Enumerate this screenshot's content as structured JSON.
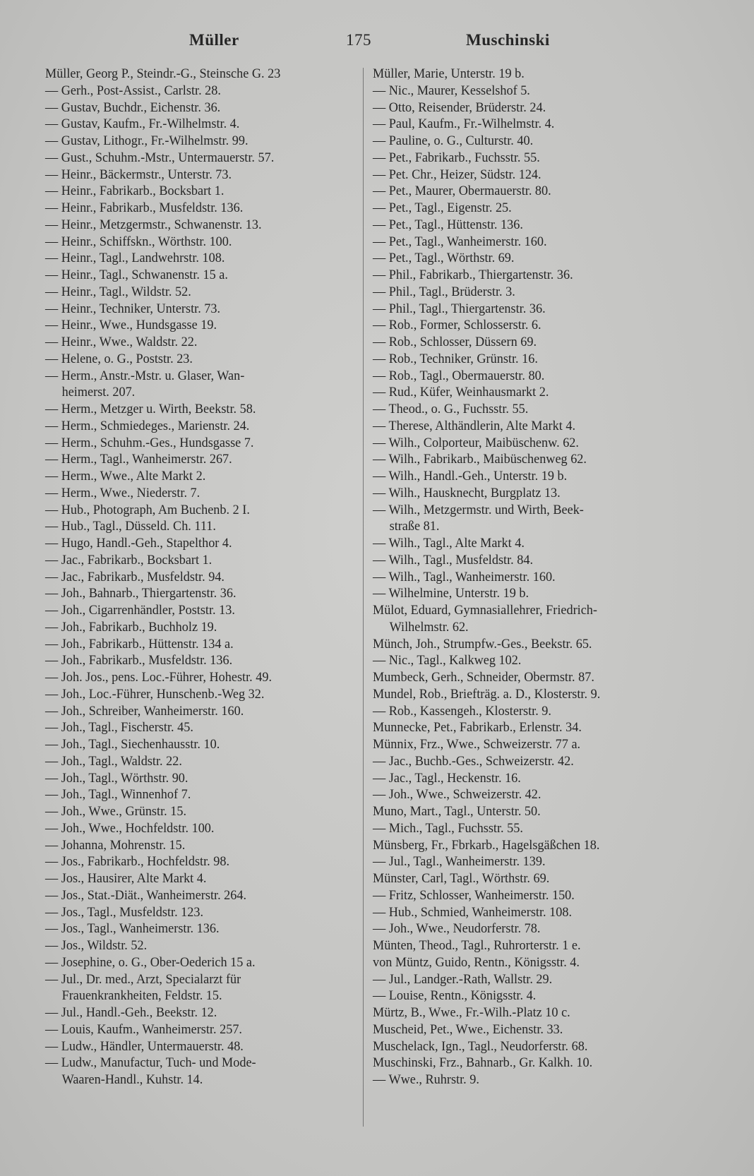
{
  "header": {
    "left_word": "Müller",
    "page_number": "175",
    "right_word": "Muschinski"
  },
  "left_column": [
    "Müller, Georg P., Steindr.-G., Steinsche G. 23",
    "— Gerh., Post-Assist., Carlstr. 28.",
    "— Gustav, Buchdr., Eichenstr. 36.",
    "— Gustav, Kaufm., Fr.-Wilhelmstr. 4.",
    "— Gustav, Lithogr., Fr.-Wilhelmstr. 99.",
    "— Gust., Schuhm.-Mstr., Untermauerstr. 57.",
    "— Heinr., Bäckermstr., Unterstr. 73.",
    "— Heinr., Fabrikarb., Bocksbart 1.",
    "— Heinr., Fabrikarb., Musfeldstr. 136.",
    "— Heinr., Metzgermstr., Schwanenstr. 13.",
    "— Heinr., Schiffskn., Wörthstr. 100.",
    "— Heinr., Tagl., Landwehrstr. 108.",
    "— Heinr., Tagl., Schwanenstr. 15 a.",
    "— Heinr., Tagl., Wildstr. 52.",
    "— Heinr., Techniker, Unterstr. 73.",
    "— Heinr., Wwe., Hundsgasse 19.",
    "— Heinr., Wwe., Waldstr. 22.",
    "— Helene, o. G., Poststr. 23.",
    "— Herm., Anstr.-Mstr. u. Glaser, Wan-",
    "heimerst. 207.",
    "— Herm., Metzger u. Wirth, Beekstr. 58.",
    "— Herm., Schmiedeges., Marienstr. 24.",
    "— Herm., Schuhm.-Ges., Hundsgasse 7.",
    "— Herm., Tagl., Wanheimerstr. 267.",
    "— Herm., Wwe., Alte Markt 2.",
    "— Herm., Wwe., Niederstr. 7.",
    "— Hub., Photograph, Am Buchenb. 2 I.",
    "— Hub., Tagl., Düsseld. Ch. 111.",
    "— Hugo, Handl.-Geh., Stapelthor 4.",
    "— Jac., Fabrikarb., Bocksbart 1.",
    "— Jac., Fabrikarb., Musfeldstr. 94.",
    "— Joh., Bahnarb., Thiergartenstr. 36.",
    "— Joh., Cigarrenhändler, Poststr. 13.",
    "— Joh., Fabrikarb., Buchholz 19.",
    "— Joh., Fabrikarb., Hüttenstr. 134 a.",
    "— Joh., Fabrikarb., Musfeldstr. 136.",
    "— Joh. Jos., pens. Loc.-Führer, Hohestr. 49.",
    "— Joh., Loc.-Führer, Hunschenb.-Weg 32.",
    "— Joh., Schreiber, Wanheimerstr. 160.",
    "— Joh., Tagl., Fischerstr. 45.",
    "— Joh., Tagl., Siechenhausstr. 10.",
    "— Joh., Tagl., Waldstr. 22.",
    "— Joh., Tagl., Wörthstr. 90.",
    "— Joh., Tagl., Winnenhof 7.",
    "— Joh., Wwe., Grünstr. 15.",
    "— Joh., Wwe., Hochfeldstr. 100.",
    "— Johanna, Mohrenstr. 15.",
    "— Jos., Fabrikarb., Hochfeldstr. 98.",
    "— Jos., Hausirer, Alte Markt 4.",
    "— Jos., Stat.-Diät., Wanheimerstr. 264.",
    "— Jos., Tagl., Musfeldstr. 123.",
    "— Jos., Tagl., Wanheimerstr. 136.",
    "— Jos., Wildstr. 52.",
    "— Josephine, o. G., Ober-Oederich 15 a.",
    "— Jul., Dr. med., Arzt, Specialarzt für",
    "Frauenkrankheiten, Feldstr. 15.",
    "— Jul., Handl.-Geh., Beekstr. 12.",
    "— Louis, Kaufm., Wanheimerstr. 257.",
    "— Ludw., Händler, Untermauerstr. 48.",
    "— Ludw., Manufactur, Tuch- und Mode-",
    "Waaren-Handl., Kuhstr. 14."
  ],
  "right_column": [
    "Müller, Marie, Unterstr. 19 b.",
    "— Nic., Maurer, Kesselshof 5.",
    "— Otto, Reisender, Brüderstr. 24.",
    "— Paul, Kaufm., Fr.-Wilhelmstr. 4.",
    "— Pauline, o. G., Culturstr. 40.",
    "— Pet., Fabrikarb., Fuchsstr. 55.",
    "— Pet. Chr., Heizer, Südstr. 124.",
    "— Pet., Maurer, Obermauerstr. 80.",
    "— Pet., Tagl., Eigenstr. 25.",
    "— Pet., Tagl., Hüttenstr. 136.",
    "— Pet., Tagl., Wanheimerstr. 160.",
    "— Pet., Tagl., Wörthstr. 69.",
    "— Phil., Fabrikarb., Thiergartenstr. 36.",
    "— Phil., Tagl., Brüderstr. 3.",
    "— Phil., Tagl., Thiergartenstr. 36.",
    "— Rob., Former, Schlosserstr. 6.",
    "— Rob., Schlosser, Düssern 69.",
    "— Rob., Techniker, Grünstr. 16.",
    "— Rob., Tagl., Obermauerstr. 80.",
    "— Rud., Küfer, Weinhausmarkt 2.",
    "— Theod., o. G., Fuchsstr. 55.",
    "— Therese, Althändlerin, Alte Markt 4.",
    "— Wilh., Colporteur, Maibüschenw. 62.",
    "— Wilh., Fabrikarb., Maibüschenweg 62.",
    "— Wilh., Handl.-Geh., Unterstr. 19 b.",
    "— Wilh., Hausknecht, Burgplatz 13.",
    "— Wilh., Metzgermstr. und Wirth, Beek-",
    "straße 81.",
    "— Wilh., Tagl., Alte Markt 4.",
    "— Wilh., Tagl., Musfeldstr. 84.",
    "— Wilh., Tagl., Wanheimerstr. 160.",
    "— Wilhelmine, Unterstr. 19 b.",
    "Mülot, Eduard, Gymnasiallehrer, Friedrich-",
    "Wilhelmstr. 62.",
    "Münch, Joh., Strumpfw.-Ges., Beekstr. 65.",
    "— Nic., Tagl., Kalkweg 102.",
    "Mumbeck, Gerh., Schneider, Obermstr. 87.",
    "Mundel, Rob., Briefträg. a. D., Klosterstr. 9.",
    "— Rob., Kassengeh., Klosterstr. 9.",
    "Munnecke, Pet., Fabrikarb., Erlenstr. 34.",
    "Münnix, Frz., Wwe., Schweizerstr. 77 a.",
    "— Jac., Buchb.-Ges., Schweizerstr. 42.",
    "— Jac., Tagl., Heckenstr. 16.",
    "— Joh., Wwe., Schweizerstr. 42.",
    "Muno, Mart., Tagl., Unterstr. 50.",
    "— Mich., Tagl., Fuchsstr. 55.",
    "Münsberg, Fr., Fbrkarb., Hagelsgäßchen 18.",
    "— Jul., Tagl., Wanheimerstr. 139.",
    "Münster, Carl, Tagl., Wörthstr. 69.",
    "— Fritz, Schlosser, Wanheimerstr. 150.",
    "— Hub., Schmied, Wanheimerstr. 108.",
    "— Joh., Wwe., Neudorferstr. 78.",
    "Münten, Theod., Tagl., Ruhrorterstr. 1 e.",
    "von Müntz, Guido, Rentn., Königsstr. 4.",
    "— Jul., Landger.-Rath, Wallstr. 29.",
    "— Louise, Rentn., Königsstr. 4.",
    "Mürtz, B., Wwe., Fr.-Wilh.-Platz 10 c.",
    "Muscheid, Pet., Wwe., Eichenstr. 33.",
    "Muschelack, Ign., Tagl., Neudorferstr. 68.",
    "Muschinski, Frz., Bahnarb., Gr. Kalkh. 10.",
    "— Wwe., Ruhrstr. 9."
  ]
}
